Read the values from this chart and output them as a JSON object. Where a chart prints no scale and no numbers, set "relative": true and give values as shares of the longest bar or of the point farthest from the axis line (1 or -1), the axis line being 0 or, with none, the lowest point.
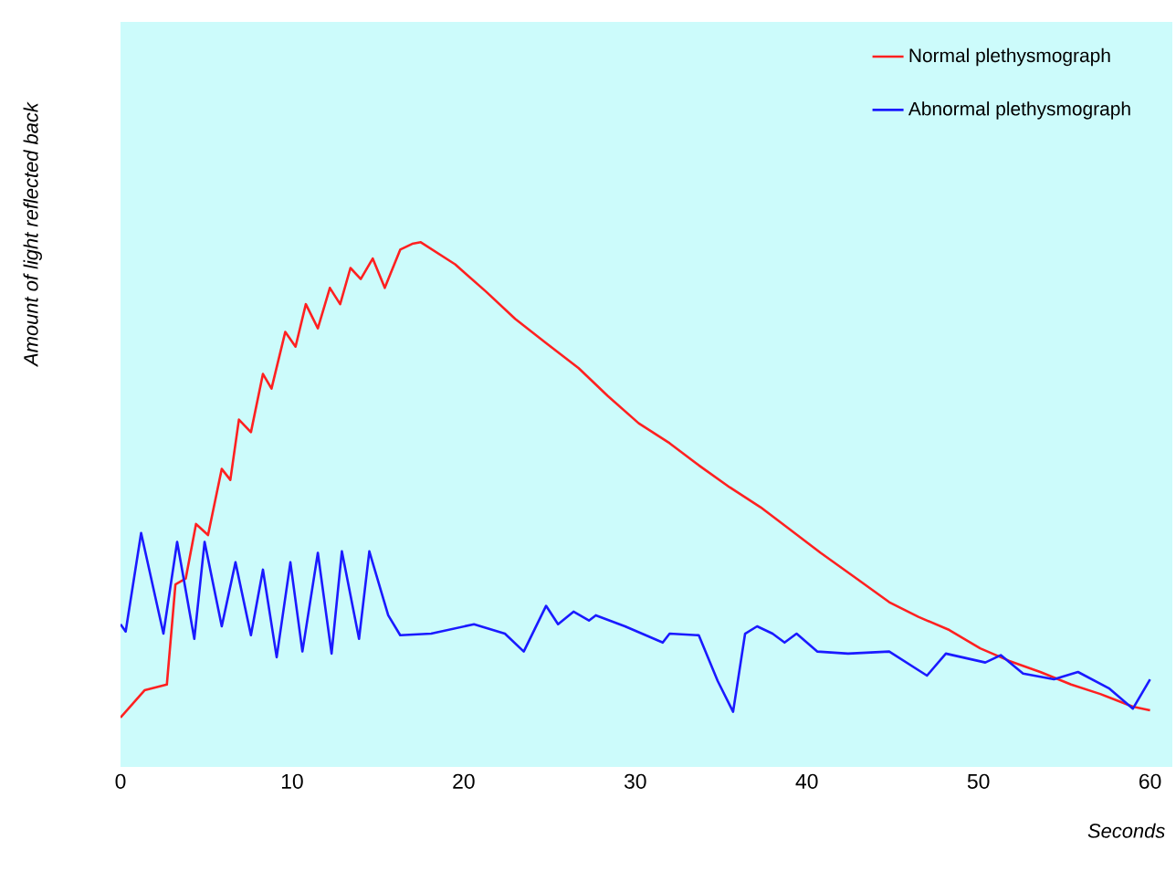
{
  "chart_data": {
    "type": "line",
    "relative": true,
    "xlabel": "Seconds",
    "ylabel": "Amount of light reflected back",
    "xlim": [
      0,
      61.3
    ],
    "xticks": [
      0,
      10,
      20,
      30,
      40,
      50,
      60
    ],
    "tick_labels": "x",
    "legend": "top right",
    "series": [
      {
        "name": "Normal plethysmograph",
        "color": "#ff2020",
        "x": [
          0,
          1.4,
          2.7,
          3.2,
          3.8,
          4.4,
          5.1,
          5.9,
          6.4,
          6.9,
          7.6,
          8.3,
          8.8,
          9.6,
          10.2,
          10.8,
          11.5,
          12.2,
          12.8,
          13.4,
          14.0,
          14.7,
          15.4,
          16.3,
          17.0,
          17.5,
          19.5,
          21.3,
          23.0,
          24.8,
          26.7,
          28.4,
          30.2,
          32.0,
          33.7,
          35.5,
          37.3,
          39.0,
          40.8,
          42.9,
          44.8,
          46.5,
          48.3,
          50.1,
          51.8,
          53.6,
          55.4,
          57.1,
          59.0,
          60
        ],
        "values": [
          0.094,
          0.146,
          0.157,
          0.348,
          0.359,
          0.463,
          0.442,
          0.568,
          0.547,
          0.662,
          0.638,
          0.749,
          0.721,
          0.829,
          0.801,
          0.882,
          0.836,
          0.913,
          0.882,
          0.951,
          0.93,
          0.969,
          0.913,
          0.986,
          0.997,
          1.0,
          0.958,
          0.906,
          0.854,
          0.808,
          0.76,
          0.707,
          0.655,
          0.617,
          0.575,
          0.533,
          0.495,
          0.453,
          0.408,
          0.359,
          0.314,
          0.286,
          0.261,
          0.226,
          0.202,
          0.181,
          0.157,
          0.139,
          0.115,
          0.108
        ]
      },
      {
        "name": "Abnormal plethysmograph",
        "color": "#1a1aff",
        "x": [
          0,
          0.3,
          1.2,
          2.5,
          3.3,
          4.3,
          4.9,
          5.9,
          6.7,
          7.6,
          8.3,
          9.1,
          9.9,
          10.6,
          11.5,
          12.3,
          12.9,
          13.9,
          14.5,
          15.6,
          16.3,
          18.1,
          20.6,
          22.4,
          23.5,
          24.8,
          25.5,
          26.4,
          27.3,
          27.7,
          29.4,
          31.6,
          32.0,
          33.7,
          34.8,
          35.7,
          36.4,
          37.1,
          38.0,
          38.7,
          39.4,
          40.6,
          42.4,
          44.8,
          47.0,
          48.1,
          50.4,
          51.3,
          52.6,
          54.4,
          55.8,
          57.6,
          59.0,
          60
        ],
        "values": [
          0.272,
          0.258,
          0.446,
          0.254,
          0.429,
          0.244,
          0.429,
          0.268,
          0.39,
          0.251,
          0.376,
          0.209,
          0.39,
          0.22,
          0.408,
          0.216,
          0.411,
          0.244,
          0.411,
          0.289,
          0.251,
          0.254,
          0.272,
          0.254,
          0.22,
          0.307,
          0.272,
          0.296,
          0.279,
          0.289,
          0.268,
          0.237,
          0.254,
          0.251,
          0.164,
          0.105,
          0.254,
          0.268,
          0.254,
          0.237,
          0.254,
          0.22,
          0.216,
          0.22,
          0.174,
          0.216,
          0.199,
          0.213,
          0.178,
          0.167,
          0.181,
          0.15,
          0.111,
          0.167
        ]
      }
    ]
  }
}
